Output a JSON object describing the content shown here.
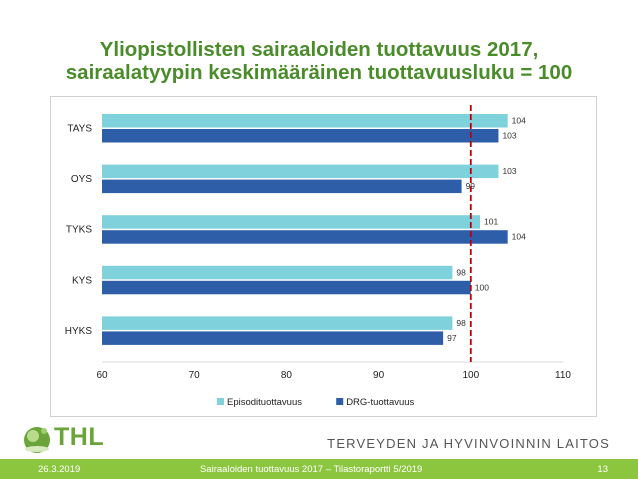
{
  "title": {
    "line1": "Yliopistollisten sairaaloiden tuottavuus 2017,",
    "line2": "sairaalatyypin keskimääräinen tuottavuusluku = 100"
  },
  "chart_data": {
    "type": "bar",
    "orientation": "horizontal",
    "categories": [
      "TAYS",
      "OYS",
      "TYKS",
      "KYS",
      "HYKS"
    ],
    "series": [
      {
        "name": "Episodituottavuus",
        "values": [
          104,
          103,
          101,
          98,
          98
        ],
        "color": "#7fd2dc"
      },
      {
        "name": "DRG-tuottavuus",
        "values": [
          103,
          99,
          104,
          100,
          97
        ],
        "color": "#2e5ea8"
      }
    ],
    "xlim": [
      60,
      110
    ],
    "xticks": [
      60,
      70,
      80,
      90,
      100,
      110
    ],
    "reference_line": {
      "value": 100,
      "color": "#c00000",
      "style": "dashed"
    },
    "legend_position": "bottom",
    "grid": false
  },
  "logo": {
    "text": "THL"
  },
  "institute": "TERVEYDEN JA HYVINVOINNIN LAITOS",
  "footer": {
    "date": "26.3.2019",
    "source": "Sairaaloiden tuottavuus 2017 – Tilastoraportti 5/2019",
    "page": "13"
  }
}
